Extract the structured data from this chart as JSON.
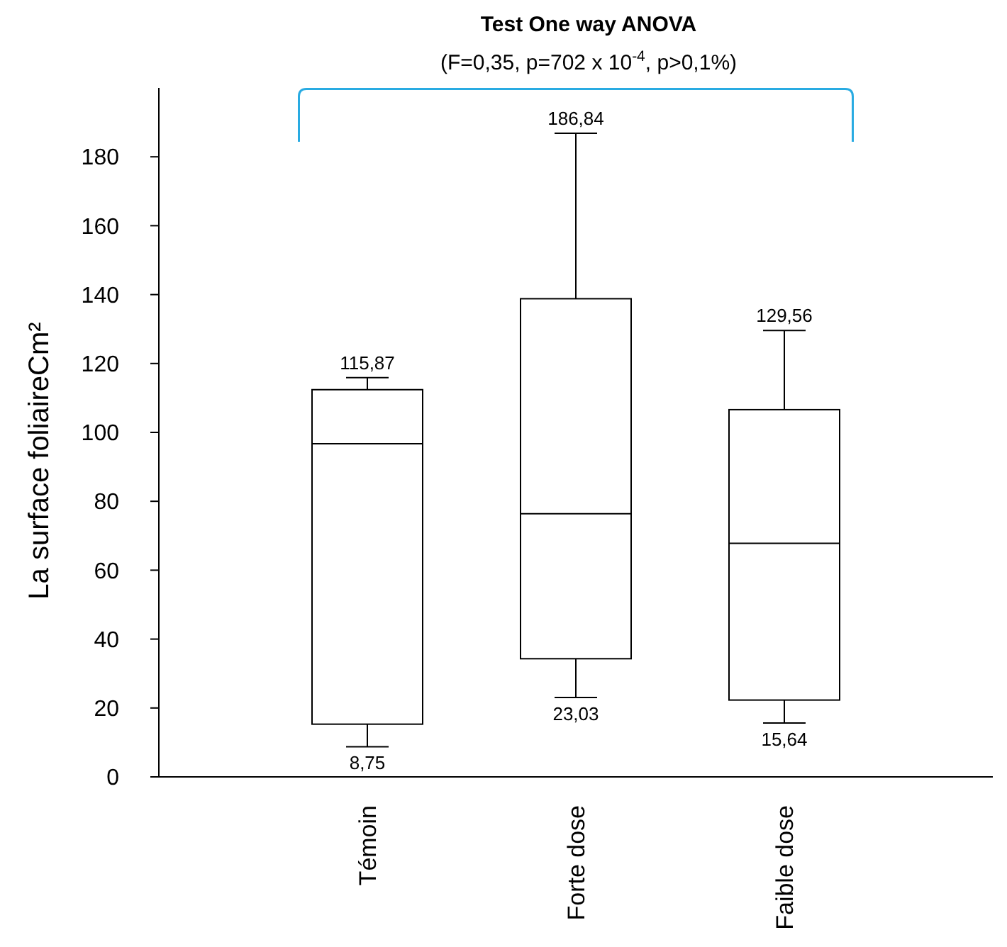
{
  "chart_data": {
    "type": "box",
    "title": "Test One way ANOVA",
    "subtitle": "(F=0,35, p=702 x 10$^{-4}$, p>0,1%)",
    "ylabel": "La surface foliaireCm²",
    "categories": [
      "Témoin",
      "Forte dose",
      "Faible dose"
    ],
    "series": [
      {
        "color": "#000000",
        "boxes": [
          {
            "low": 8.75,
            "q1": 15.3,
            "median": 96.7,
            "q3": 112.4,
            "high": 115.87
          },
          {
            "low": 23.03,
            "q1": 34.3,
            "median": 76.4,
            "q3": 138.8,
            "high": 186.84
          },
          {
            "low": 15.64,
            "q1": 22.3,
            "median": 67.8,
            "q3": 106.6,
            "high": 129.56
          }
        ]
      }
    ],
    "ylim": [
      0,
      200
    ],
    "yticks": [
      0,
      20,
      40,
      60,
      80,
      100,
      120,
      140,
      160,
      180
    ],
    "grid": false,
    "annotations": [
      {
        "text": "115,87",
        "x": "Témoin",
        "y": 115.87
      },
      {
        "text": "8,75",
        "x": "Témoin",
        "y": 8.75
      },
      {
        "text": "186,84",
        "x": "Forte dose",
        "y": 186.84
      },
      {
        "text": "23,03",
        "x": "Forte dose",
        "y": 23.03
      },
      {
        "text": "129,56",
        "x": "Faible dose",
        "y": 129.56
      },
      {
        "text": "15,64",
        "x": "Faible dose",
        "y": 15.64
      }
    ]
  }
}
